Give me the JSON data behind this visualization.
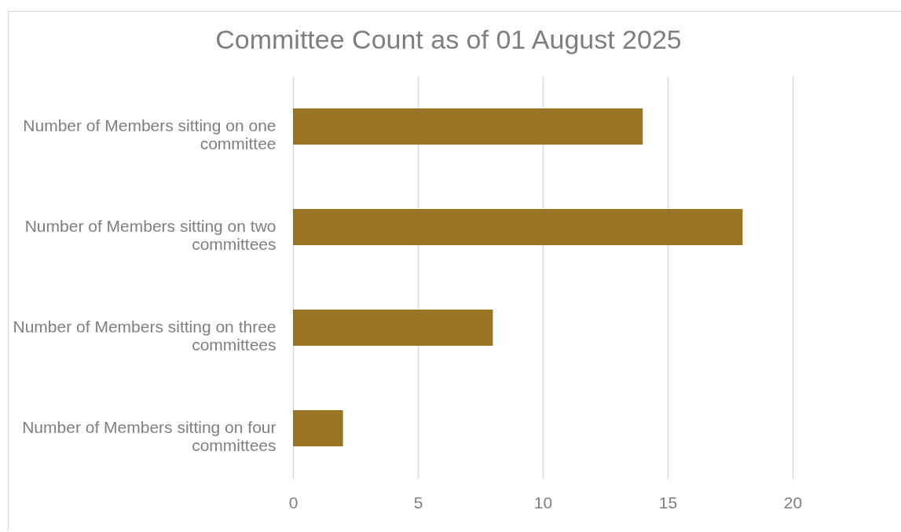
{
  "chart_data": {
    "type": "bar",
    "orientation": "horizontal",
    "title": "Committee Count as of 01 August 2025",
    "categories": [
      "Number of Members sitting on one committee",
      "Number of Members sitting on two committees",
      "Number of Members sitting on three committees",
      "Number of Members sitting on four committees"
    ],
    "values": [
      14,
      18,
      8,
      2
    ],
    "color": "#9a7425",
    "xlim": [
      0,
      20
    ],
    "xticks": [
      0,
      5,
      10,
      15,
      20
    ],
    "grid": "x"
  }
}
